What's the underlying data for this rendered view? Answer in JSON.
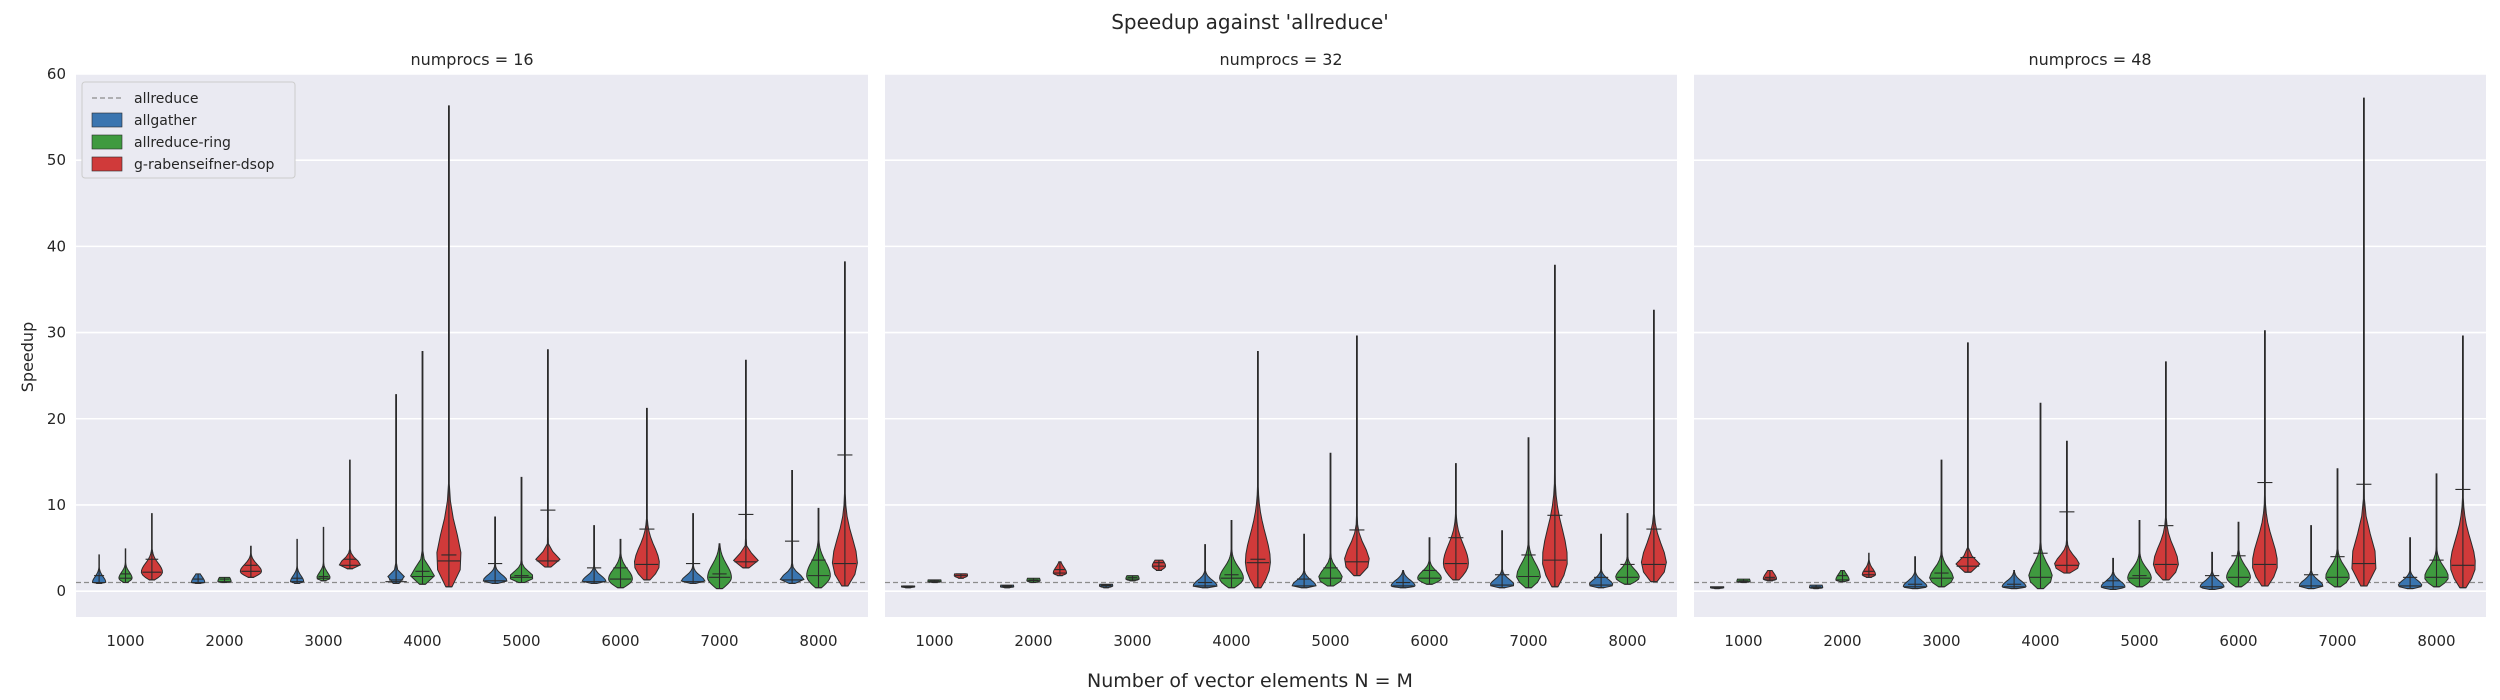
{
  "chart_data": {
    "type": "violin",
    "title": "Speedup against 'allreduce'",
    "xlabel": "Number of vector elements N = M",
    "ylabel": "Speedup",
    "ylim": [
      -3,
      60
    ],
    "yticks": [
      0,
      10,
      20,
      30,
      40,
      50,
      60
    ],
    "categories": [
      "1000",
      "2000",
      "3000",
      "4000",
      "5000",
      "6000",
      "7000",
      "8000"
    ],
    "grid": true,
    "legend_placement": "top-left",
    "baseline": {
      "name": "allreduce",
      "value": 1,
      "style": "dashed"
    },
    "series_names": [
      "allgather",
      "allreduce-ring",
      "g-rabenseifner-dsop"
    ],
    "colors": {
      "allgather": "#3a75b0",
      "allreduce-ring": "#3f9a3f",
      "g-rabenseifner-dsop": "#d03a3a",
      "allreduce": "#8c8c8c"
    },
    "facets": [
      {
        "title": "numprocs = 16",
        "series": [
          {
            "name": "allgather",
            "min": [
              0.9,
              0.9,
              0.9,
              0.9,
              0.9,
              0.9,
              0.9,
              0.9
            ],
            "median": [
              1.0,
              1.0,
              1.1,
              1.1,
              1.2,
              1.1,
              1.1,
              1.3
            ],
            "max": [
              4.2,
              2.0,
              6.0,
              22.8,
              8.6,
              7.6,
              9.0,
              14.0
            ],
            "cap": [
              1.8,
              1.4,
              1.5,
              1.3,
              3.2,
              2.7,
              3.2,
              5.8
            ],
            "width": [
              0.5,
              0.5,
              0.5,
              0.9,
              0.9,
              0.9,
              0.9,
              0.9
            ]
          },
          {
            "name": "allreduce-ring",
            "min": [
              1.0,
              1.0,
              1.2,
              0.8,
              1.0,
              0.4,
              0.3,
              0.4
            ],
            "median": [
              1.5,
              1.1,
              1.5,
              1.7,
              1.6,
              1.4,
              1.6,
              1.8
            ],
            "max": [
              4.9,
              1.6,
              7.4,
              27.8,
              13.2,
              6.0,
              5.5,
              9.6
            ],
            "cap": [
              2.0,
              1.4,
              1.7,
              2.3,
              1.8,
              2.7,
              2.0,
              3.6
            ],
            "width": [
              0.5,
              0.5,
              0.5,
              0.9,
              0.9,
              0.9,
              0.9,
              0.9
            ]
          },
          {
            "name": "g-rabenseifner-dsop",
            "min": [
              1.3,
              1.6,
              2.6,
              0.5,
              2.8,
              1.3,
              2.7,
              0.6
            ],
            "median": [
              2.2,
              2.3,
              3.0,
              3.5,
              3.5,
              3.1,
              3.4,
              3.2
            ],
            "max": [
              9.0,
              5.2,
              15.2,
              56.3,
              28.0,
              21.2,
              26.8,
              38.2
            ],
            "cap": [
              3.7,
              3.0,
              3.7,
              4.2,
              9.4,
              7.2,
              8.9,
              15.8
            ],
            "width": [
              0.8,
              0.8,
              0.8,
              0.95,
              0.95,
              0.95,
              0.95,
              0.95
            ]
          }
        ]
      },
      {
        "title": "numprocs = 32",
        "series": [
          {
            "name": "allgather",
            "min": [
              0.4,
              0.4,
              0.4,
              0.4,
              0.4,
              0.4,
              0.4,
              0.4
            ],
            "median": [
              0.5,
              0.5,
              0.6,
              0.6,
              0.6,
              0.6,
              0.7,
              0.7
            ],
            "max": [
              0.6,
              0.7,
              0.8,
              5.4,
              6.6,
              2.4,
              7.0,
              6.6
            ],
            "cap": [
              0.6,
              0.6,
              0.7,
              1.0,
              1.4,
              1.0,
              1.9,
              1.6
            ],
            "width": [
              0.5,
              0.5,
              0.5,
              0.9,
              0.9,
              0.9,
              0.9,
              0.9
            ]
          },
          {
            "name": "allreduce-ring",
            "min": [
              1.0,
              1.0,
              1.2,
              0.4,
              0.6,
              0.8,
              0.4,
              0.8
            ],
            "median": [
              1.1,
              1.2,
              1.4,
              1.5,
              1.5,
              1.5,
              1.7,
              1.6
            ],
            "max": [
              1.3,
              1.5,
              1.8,
              8.2,
              16.0,
              6.2,
              17.8,
              9.0
            ],
            "cap": [
              1.2,
              1.3,
              1.6,
              1.9,
              2.7,
              2.4,
              4.2,
              3.1
            ],
            "width": [
              0.5,
              0.5,
              0.5,
              0.9,
              0.9,
              0.9,
              0.9,
              0.9
            ]
          },
          {
            "name": "g-rabenseifner-dsop",
            "min": [
              1.5,
              1.8,
              2.4,
              0.4,
              1.8,
              1.3,
              0.5,
              1.1
            ],
            "median": [
              1.8,
              2.1,
              2.9,
              3.3,
              3.4,
              3.2,
              3.6,
              3.1
            ],
            "max": [
              2.0,
              3.4,
              3.6,
              27.8,
              29.6,
              14.8,
              37.8,
              32.6
            ],
            "cap": [
              2.0,
              2.5,
              3.3,
              3.7,
              7.1,
              6.2,
              8.8,
              7.2
            ],
            "width": [
              0.5,
              0.5,
              0.5,
              0.95,
              0.95,
              0.95,
              0.95,
              0.95
            ]
          }
        ]
      },
      {
        "title": "numprocs = 48",
        "series": [
          {
            "name": "allgather",
            "min": [
              0.3,
              0.3,
              0.3,
              0.3,
              0.2,
              0.2,
              0.3,
              0.3
            ],
            "median": [
              0.4,
              0.4,
              0.5,
              0.5,
              0.5,
              0.5,
              0.6,
              0.6
            ],
            "max": [
              0.5,
              0.7,
              4.0,
              2.4,
              3.8,
              4.5,
              7.6,
              6.2
            ],
            "cap": [
              0.4,
              0.5,
              0.8,
              0.8,
              1.2,
              1.8,
              1.9,
              1.6
            ],
            "width": [
              0.5,
              0.5,
              0.9,
              0.9,
              0.9,
              0.9,
              0.9,
              0.9
            ]
          },
          {
            "name": "allreduce-ring",
            "min": [
              1.0,
              1.1,
              0.5,
              0.3,
              0.5,
              0.5,
              0.5,
              0.5
            ],
            "median": [
              1.1,
              1.3,
              1.5,
              1.6,
              1.5,
              1.6,
              1.6,
              1.6
            ],
            "max": [
              1.4,
              2.4,
              15.2,
              21.8,
              8.2,
              8.0,
              14.2,
              13.6
            ],
            "cap": [
              1.2,
              1.8,
              2.1,
              4.4,
              1.8,
              4.1,
              4.0,
              3.6
            ],
            "width": [
              0.5,
              0.5,
              0.9,
              0.9,
              0.9,
              0.9,
              0.9,
              0.9
            ]
          },
          {
            "name": "g-rabenseifner-dsop",
            "min": [
              1.2,
              1.6,
              2.2,
              2.1,
              1.3,
              0.6,
              0.6,
              0.4
            ],
            "median": [
              1.4,
              1.9,
              2.9,
              3.0,
              3.1,
              3.1,
              3.2,
              3.0
            ],
            "max": [
              2.4,
              4.4,
              28.8,
              17.4,
              26.6,
              30.2,
              57.2,
              29.6
            ],
            "cap": [
              1.6,
              2.3,
              3.9,
              9.2,
              7.6,
              12.6,
              12.4,
              11.8
            ],
            "width": [
              0.5,
              0.5,
              0.95,
              0.95,
              0.95,
              0.95,
              0.95,
              0.95
            ]
          }
        ]
      }
    ]
  }
}
